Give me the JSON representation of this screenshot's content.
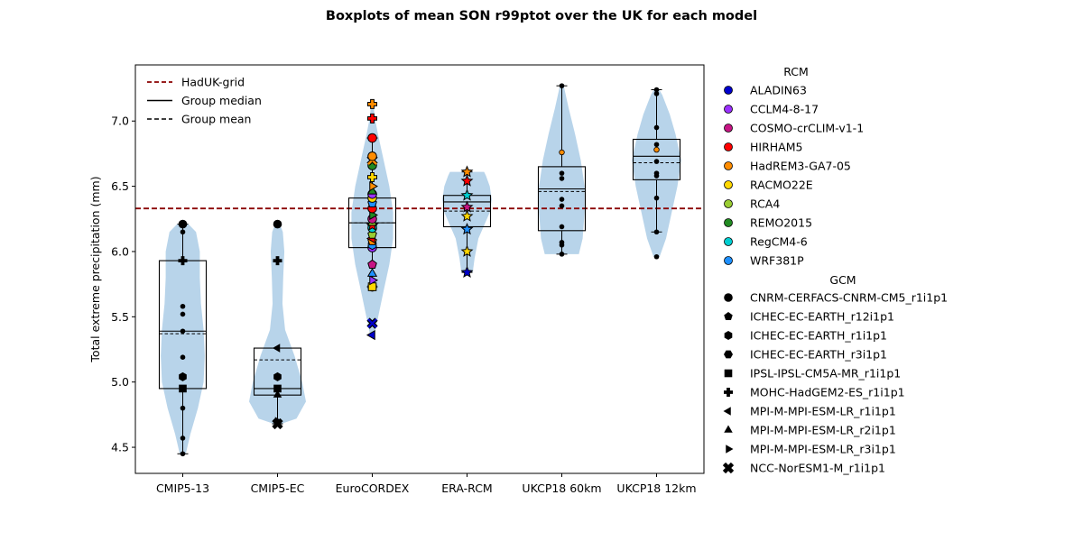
{
  "chart_data": {
    "type": "box",
    "title": "Boxplots of mean SON r99ptot over the UK for each model",
    "ylabel": "Total extreme precipitation (mm)",
    "xlabel": "",
    "ylim": [
      4.3,
      7.43
    ],
    "yticks": [
      "4.5",
      "5.0",
      "5.5",
      "6.0",
      "6.5",
      "7.0"
    ],
    "categories": [
      "CMIP5-13",
      "CMIP5-EC",
      "EuroCORDEX",
      "ERA-RCM",
      "UKCP18 60km",
      "UKCP18 12km"
    ],
    "reference_line": {
      "name": "HadUK-grid",
      "value": 6.33,
      "color": "#8b0000"
    },
    "legend_lines": [
      {
        "label": "HadUK-grid",
        "style": "dashed",
        "color": "#8b0000"
      },
      {
        "label": "Group median",
        "style": "solid",
        "color": "#000000"
      },
      {
        "label": "Group mean",
        "style": "dashed",
        "color": "#000000"
      }
    ],
    "groups": [
      {
        "name": "CMIP5-13",
        "q1": 4.95,
        "median": 5.39,
        "q3": 5.93,
        "mean": 5.37,
        "whisker_low": 4.45,
        "whisker_high": 6.21,
        "violin": [
          [
            4.45,
            0.08
          ],
          [
            4.6,
            0.2
          ],
          [
            4.8,
            0.4
          ],
          [
            5.0,
            0.55
          ],
          [
            5.2,
            0.58
          ],
          [
            5.4,
            0.55
          ],
          [
            5.6,
            0.48
          ],
          [
            5.8,
            0.45
          ],
          [
            6.0,
            0.45
          ],
          [
            6.15,
            0.35
          ],
          [
            6.21,
            0.15
          ]
        ],
        "points": [
          {
            "y": 4.45,
            "m": "small"
          },
          {
            "y": 4.57,
            "m": "small"
          },
          {
            "y": 4.8,
            "m": "small"
          },
          {
            "y": 4.95,
            "m": "square"
          },
          {
            "y": 5.04,
            "m": "hexagon"
          },
          {
            "y": 5.19,
            "m": "small"
          },
          {
            "y": 5.39,
            "m": "small"
          },
          {
            "y": 5.52,
            "m": "small"
          },
          {
            "y": 5.58,
            "m": "small"
          },
          {
            "y": 5.93,
            "m": "plus"
          },
          {
            "y": 6.15,
            "m": "small"
          },
          {
            "y": 6.21,
            "m": "circle"
          }
        ]
      },
      {
        "name": "CMIP5-EC",
        "q1": 4.9,
        "median": 4.95,
        "q3": 5.26,
        "mean": 5.17,
        "whisker_low": 4.68,
        "whisker_high": null,
        "violin": [
          [
            4.68,
            0.1
          ],
          [
            4.72,
            0.5
          ],
          [
            4.85,
            0.75
          ],
          [
            5.0,
            0.65
          ],
          [
            5.2,
            0.45
          ],
          [
            5.4,
            0.2
          ],
          [
            5.6,
            0.13
          ],
          [
            5.8,
            0.15
          ],
          [
            6.0,
            0.18
          ],
          [
            6.15,
            0.14
          ],
          [
            6.21,
            0.06
          ]
        ],
        "points": [
          {
            "y": 4.68,
            "m": "x"
          },
          {
            "y": 4.7,
            "m": "triangle_right"
          },
          {
            "y": 4.9,
            "m": "triangle_up"
          },
          {
            "y": 4.95,
            "m": "square"
          },
          {
            "y": 5.04,
            "m": "hexagon"
          },
          {
            "y": 5.26,
            "m": "triangle_left"
          },
          {
            "y": 5.93,
            "m": "plus"
          },
          {
            "y": 6.21,
            "m": "circle"
          }
        ]
      },
      {
        "name": "EuroCORDEX",
        "q1": 6.03,
        "median": 6.22,
        "q3": 6.41,
        "mean": 6.22,
        "whisker_low": 5.73,
        "whisker_high": 6.87,
        "violin": [
          [
            5.35,
            0.05
          ],
          [
            5.45,
            0.12
          ],
          [
            5.7,
            0.3
          ],
          [
            5.9,
            0.45
          ],
          [
            6.1,
            0.55
          ],
          [
            6.3,
            0.55
          ],
          [
            6.5,
            0.45
          ],
          [
            6.7,
            0.3
          ],
          [
            6.9,
            0.15
          ],
          [
            7.02,
            0.07
          ],
          [
            7.13,
            0.03
          ]
        ],
        "points": [
          {
            "y": 5.73,
            "m": "circle",
            "c": "#0000cd"
          },
          {
            "y": 5.73,
            "m": "square",
            "c": "#ffd700"
          },
          {
            "y": 5.78,
            "m": "triangle_right",
            "c": "#9b30ff"
          },
          {
            "y": 5.83,
            "m": "triangle_up",
            "c": "#1e90ff"
          },
          {
            "y": 5.9,
            "m": "pentagon",
            "c": "#c71585"
          },
          {
            "y": 6.03,
            "m": "circle",
            "c": "#9b30ff"
          },
          {
            "y": 6.05,
            "m": "hexagon",
            "c": "#1e90ff"
          },
          {
            "y": 6.08,
            "m": "pentagon",
            "c": "#ff8c00"
          },
          {
            "y": 6.1,
            "m": "triangle_left",
            "c": "#ff0000"
          },
          {
            "y": 6.13,
            "m": "pentagon",
            "c": "#9acd32"
          },
          {
            "y": 6.18,
            "m": "circle",
            "c": "#00ced1"
          },
          {
            "y": 6.2,
            "m": "star",
            "c": "#ff0000"
          },
          {
            "y": 6.22,
            "m": "triangle_up",
            "c": "#9acd32"
          },
          {
            "y": 6.25,
            "m": "circle",
            "c": "#c71585"
          },
          {
            "y": 6.28,
            "m": "triangle_right",
            "c": "#228b22"
          },
          {
            "y": 6.33,
            "m": "circle",
            "c": "#ff0000"
          },
          {
            "y": 6.37,
            "m": "pentagon",
            "c": "#1e90ff"
          },
          {
            "y": 6.41,
            "m": "circle",
            "c": "#ffd700"
          },
          {
            "y": 6.44,
            "m": "circle",
            "c": "#9b30ff"
          },
          {
            "y": 6.46,
            "m": "triangle_up",
            "c": "#228b22"
          },
          {
            "y": 6.5,
            "m": "triangle_right",
            "c": "#ff8c00"
          },
          {
            "y": 6.57,
            "m": "plus",
            "c": "#ffd700"
          },
          {
            "y": 6.66,
            "m": "circle",
            "c": "#228b22"
          },
          {
            "y": 6.7,
            "m": "x",
            "c": "#ff8c00"
          },
          {
            "y": 6.73,
            "m": "circle",
            "c": "#ff8c00"
          },
          {
            "y": 6.87,
            "m": "circle",
            "c": "#ff0000"
          },
          {
            "y": 7.02,
            "m": "plus",
            "c": "#ff0000"
          },
          {
            "y": 7.13,
            "m": "plus",
            "c": "#ff8c00"
          },
          {
            "y": 5.45,
            "m": "x",
            "c": "#0000cd"
          },
          {
            "y": 5.36,
            "m": "triangle_left",
            "c": "#0000cd"
          }
        ]
      },
      {
        "name": "ERA-RCM",
        "q1": 6.19,
        "median": 6.38,
        "q3": 6.43,
        "mean": 6.31,
        "whisker_low": 5.84,
        "whisker_high": 6.61,
        "violin": [
          [
            5.84,
            0.15
          ],
          [
            5.95,
            0.2
          ],
          [
            6.1,
            0.3
          ],
          [
            6.2,
            0.45
          ],
          [
            6.3,
            0.6
          ],
          [
            6.4,
            0.65
          ],
          [
            6.5,
            0.6
          ],
          [
            6.58,
            0.5
          ],
          [
            6.61,
            0.45
          ]
        ],
        "points": [
          {
            "y": 5.84,
            "m": "star",
            "c": "#0000cd"
          },
          {
            "y": 6.0,
            "m": "star",
            "c": "#ffd700"
          },
          {
            "y": 6.17,
            "m": "star",
            "c": "#1e90ff"
          },
          {
            "y": 6.27,
            "m": "star",
            "c": "#ffd700"
          },
          {
            "y": 6.34,
            "m": "star",
            "c": "#c71585"
          },
          {
            "y": 6.43,
            "m": "star",
            "c": "#00ced1"
          },
          {
            "y": 6.54,
            "m": "star",
            "c": "#ff0000"
          },
          {
            "y": 6.61,
            "m": "star",
            "c": "#ff8c00"
          }
        ]
      },
      {
        "name": "UKCP18 60km",
        "q1": 6.16,
        "median": 6.48,
        "q3": 6.65,
        "mean": 6.46,
        "whisker_low": 5.98,
        "whisker_high": 7.27,
        "violin": [
          [
            5.98,
            0.45
          ],
          [
            6.1,
            0.55
          ],
          [
            6.3,
            0.6
          ],
          [
            6.5,
            0.6
          ],
          [
            6.7,
            0.5
          ],
          [
            6.9,
            0.35
          ],
          [
            7.1,
            0.18
          ],
          [
            7.27,
            0.05
          ]
        ],
        "points": [
          {
            "y": 5.98,
            "m": "small"
          },
          {
            "y": 6.05,
            "m": "small"
          },
          {
            "y": 6.07,
            "m": "small"
          },
          {
            "y": 6.19,
            "m": "small"
          },
          {
            "y": 6.35,
            "m": "small"
          },
          {
            "y": 6.4,
            "m": "small"
          },
          {
            "y": 6.56,
            "m": "small"
          },
          {
            "y": 6.6,
            "m": "small"
          },
          {
            "y": 6.76,
            "m": "small",
            "c": "#ff8c00"
          },
          {
            "y": 7.27,
            "m": "small"
          }
        ]
      },
      {
        "name": "UKCP18 12km",
        "q1": 6.55,
        "median": 6.73,
        "q3": 6.86,
        "mean": 6.68,
        "whisker_low": 6.15,
        "whisker_high": 7.24,
        "violin": [
          [
            5.96,
            0.08
          ],
          [
            6.1,
            0.25
          ],
          [
            6.3,
            0.4
          ],
          [
            6.5,
            0.55
          ],
          [
            6.7,
            0.65
          ],
          [
            6.9,
            0.5
          ],
          [
            7.05,
            0.35
          ],
          [
            7.2,
            0.15
          ],
          [
            7.24,
            0.07
          ]
        ],
        "points": [
          {
            "y": 5.96,
            "m": "small"
          },
          {
            "y": 6.15,
            "m": "small"
          },
          {
            "y": 6.41,
            "m": "small"
          },
          {
            "y": 6.58,
            "m": "small"
          },
          {
            "y": 6.6,
            "m": "small"
          },
          {
            "y": 6.69,
            "m": "small"
          },
          {
            "y": 6.78,
            "m": "small",
            "c": "#ff8c00"
          },
          {
            "y": 6.82,
            "m": "small"
          },
          {
            "y": 6.95,
            "m": "small"
          },
          {
            "y": 7.21,
            "m": "small"
          },
          {
            "y": 7.24,
            "m": "small"
          }
        ]
      }
    ],
    "rcm_legend_title": "RCM",
    "rcm": [
      {
        "name": "ALADIN63",
        "color": "#0000cd"
      },
      {
        "name": "CCLM4-8-17",
        "color": "#9b30ff"
      },
      {
        "name": "COSMO-crCLIM-v1-1",
        "color": "#c71585"
      },
      {
        "name": "HIRHAM5",
        "color": "#ff0000"
      },
      {
        "name": "HadREM3-GA7-05",
        "color": "#ff8c00"
      },
      {
        "name": "RACMO22E",
        "color": "#ffd700"
      },
      {
        "name": "RCA4",
        "color": "#9acd32"
      },
      {
        "name": "REMO2015",
        "color": "#228b22"
      },
      {
        "name": "RegCM4-6",
        "color": "#00ced1"
      },
      {
        "name": "WRF381P",
        "color": "#1e90ff"
      }
    ],
    "gcm_legend_title": "GCM",
    "gcm": [
      {
        "name": "CNRM-CERFACS-CNRM-CM5_r1i1p1",
        "marker": "circle"
      },
      {
        "name": "ICHEC-EC-EARTH_r12i1p1",
        "marker": "pentagon"
      },
      {
        "name": "ICHEC-EC-EARTH_r1i1p1",
        "marker": "hexagon"
      },
      {
        "name": "ICHEC-EC-EARTH_r3i1p1",
        "marker": "hexagon2"
      },
      {
        "name": "IPSL-IPSL-CM5A-MR_r1i1p1",
        "marker": "square"
      },
      {
        "name": "MOHC-HadGEM2-ES_r1i1p1",
        "marker": "plus"
      },
      {
        "name": "MPI-M-MPI-ESM-LR_r1i1p1",
        "marker": "triangle_left"
      },
      {
        "name": "MPI-M-MPI-ESM-LR_r2i1p1",
        "marker": "triangle_up"
      },
      {
        "name": "MPI-M-MPI-ESM-LR_r3i1p1",
        "marker": "triangle_right"
      },
      {
        "name": "NCC-NorESM1-M_r1i1p1",
        "marker": "x"
      }
    ],
    "violin_color": "#b8d4ea",
    "grid": false
  }
}
